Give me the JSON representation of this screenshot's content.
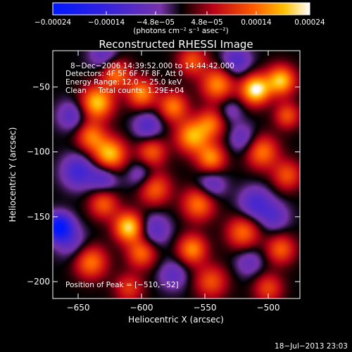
{
  "chart_data": {
    "type": "heatmap",
    "title": "Reconstructed RHESSI Image",
    "xlabel": "Heliocentric X (arcsec)",
    "ylabel": "Heliocentric Y (arcsec)",
    "xlim": [
      -670,
      -475
    ],
    "ylim": [
      -213,
      -22
    ],
    "x_ticks": [
      -650,
      -600,
      -550,
      -500
    ],
    "y_ticks": [
      -50,
      -100,
      -150,
      -200
    ],
    "x_tick_labels": [
      "−650",
      "−600",
      "−550",
      "−500"
    ],
    "y_tick_labels": [
      "−50",
      "−100",
      "−150",
      "−200"
    ],
    "colorbar": {
      "min": -0.00024,
      "max": 0.00024,
      "ticks": [
        -0.00024,
        -0.00014,
        -4.8e-05,
        4.8e-05,
        0.00014,
        0.00024
      ],
      "tick_labels": [
        "−0.00024",
        "−0.00014",
        "−4.8e−05",
        "4.8e−05",
        "0.00014",
        "0.00024"
      ],
      "units": "(photons cm⁻² s⁻¹ asec⁻²)"
    },
    "annotations": [
      "8−Dec−2006 14:39:52.000 to 14:44:42.000",
      "Detectors: 4F 5F 6F 7F 8F, Att 0",
      "Energy Range: 12.0 − 25.0 keV",
      "Clean     Total counts: 1.29E+04",
      "Position of Peak = [−510,−52]"
    ],
    "peak": {
      "x": -510,
      "y": -52
    },
    "blobs": [
      {
        "x": -510,
        "y": -52,
        "v": 0.00024,
        "s": 8
      },
      {
        "x": -540,
        "y": -48,
        "v": 0.00016,
        "s": 9
      },
      {
        "x": -560,
        "y": -30,
        "v": 0.00012,
        "s": 8
      },
      {
        "x": -635,
        "y": -62,
        "v": 0.0002,
        "s": 9
      },
      {
        "x": -620,
        "y": -40,
        "v": 0.00014,
        "s": 8
      },
      {
        "x": -600,
        "y": -55,
        "v": 0.00016,
        "s": 8
      },
      {
        "x": -575,
        "y": -65,
        "v": 0.00015,
        "s": 8
      },
      {
        "x": -545,
        "y": -78,
        "v": 0.00013,
        "s": 8
      },
      {
        "x": -490,
        "y": -45,
        "v": 0.0002,
        "s": 8
      },
      {
        "x": -485,
        "y": -72,
        "v": 0.00012,
        "s": 7
      },
      {
        "x": -640,
        "y": -88,
        "v": 0.00014,
        "s": 8
      },
      {
        "x": -625,
        "y": -102,
        "v": 0.0002,
        "s": 9
      },
      {
        "x": -592,
        "y": -100,
        "v": 0.00013,
        "s": 8
      },
      {
        "x": -560,
        "y": -88,
        "v": 0.00018,
        "s": 9
      },
      {
        "x": -545,
        "y": -105,
        "v": 0.00016,
        "s": 8
      },
      {
        "x": -505,
        "y": -100,
        "v": 0.00015,
        "s": 9
      },
      {
        "x": -485,
        "y": -118,
        "v": 0.00012,
        "s": 8
      },
      {
        "x": -590,
        "y": -128,
        "v": 0.00014,
        "s": 9
      },
      {
        "x": -555,
        "y": -140,
        "v": 0.00015,
        "s": 9
      },
      {
        "x": -630,
        "y": -140,
        "v": 0.00013,
        "s": 8
      },
      {
        "x": -610,
        "y": -158,
        "v": 0.00022,
        "s": 8
      },
      {
        "x": -640,
        "y": -185,
        "v": 0.00015,
        "s": 9
      },
      {
        "x": -600,
        "y": -178,
        "v": 0.00014,
        "s": 8
      },
      {
        "x": -560,
        "y": -175,
        "v": 0.00016,
        "s": 8
      },
      {
        "x": -520,
        "y": -162,
        "v": 0.00014,
        "s": 9
      },
      {
        "x": -490,
        "y": -175,
        "v": 0.00013,
        "s": 8
      },
      {
        "x": -545,
        "y": -200,
        "v": 0.00012,
        "s": 9
      },
      {
        "x": -610,
        "y": -205,
        "v": 0.0001,
        "s": 8
      },
      {
        "x": -500,
        "y": -205,
        "v": 0.00011,
        "s": 8
      },
      {
        "x": -665,
        "y": -158,
        "v": -0.00024,
        "s": 7
      },
      {
        "x": -650,
        "y": -115,
        "v": -0.00012,
        "s": 9
      },
      {
        "x": -630,
        "y": -120,
        "v": -0.0001,
        "s": 8
      },
      {
        "x": -655,
        "y": -72,
        "v": -9e-05,
        "s": 8
      },
      {
        "x": -595,
        "y": -80,
        "v": -0.0001,
        "s": 8
      },
      {
        "x": -590,
        "y": -160,
        "v": -9e-05,
        "s": 9
      },
      {
        "x": -545,
        "y": -125,
        "v": -9e-05,
        "s": 8
      },
      {
        "x": -520,
        "y": -90,
        "v": -8e-05,
        "s": 8
      },
      {
        "x": -510,
        "y": -140,
        "v": -0.00011,
        "s": 9
      },
      {
        "x": -495,
        "y": -150,
        "v": -8e-05,
        "s": 8
      },
      {
        "x": -525,
        "y": -30,
        "v": -0.0001,
        "s": 8
      },
      {
        "x": -600,
        "y": -118,
        "v": -8e-05,
        "s": 8
      },
      {
        "x": -655,
        "y": -170,
        "v": -7e-05,
        "s": 9
      },
      {
        "x": -575,
        "y": -195,
        "v": -8e-05,
        "s": 8
      },
      {
        "x": -515,
        "y": -185,
        "v": -7e-05,
        "s": 8
      },
      {
        "x": -530,
        "y": -68,
        "v": -6e-05,
        "s": 7
      },
      {
        "x": -630,
        "y": -25,
        "v": -8e-05,
        "s": 8
      }
    ]
  },
  "footer": {
    "timestamp": "18−Jul−2013 23:03"
  }
}
